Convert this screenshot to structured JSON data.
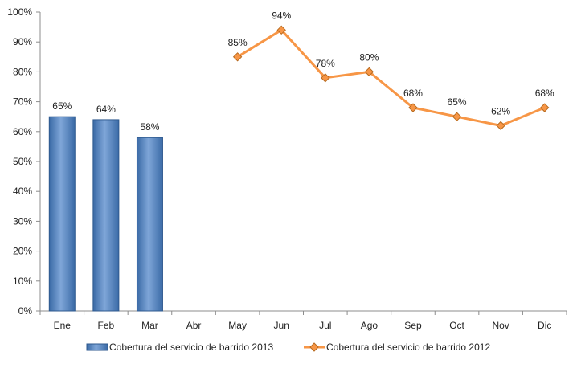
{
  "chart_data": {
    "type": "bar",
    "categories": [
      "Ene",
      "Feb",
      "Mar",
      "Abr",
      "May",
      "Jun",
      "Jul",
      "Ago",
      "Sep",
      "Oct",
      "Nov",
      "Dic"
    ],
    "y_ticks": [
      "0%",
      "10%",
      "20%",
      "30%",
      "40%",
      "50%",
      "60%",
      "70%",
      "80%",
      "90%",
      "100%"
    ],
    "ylim": [
      0,
      100
    ],
    "grid": false,
    "legend_position": "bottom",
    "series": [
      {
        "name": "Cobertura del servicio de barrido 2013",
        "type": "bar",
        "color": "#4F81BD",
        "values": [
          65,
          64,
          58,
          null,
          null,
          null,
          null,
          null,
          null,
          null,
          null,
          null
        ],
        "labels": [
          "65%",
          "64%",
          "58%",
          "",
          "",
          "",
          "",
          "",
          "",
          "",
          "",
          ""
        ]
      },
      {
        "name": "Cobertura del servicio de barrido 2012",
        "type": "line",
        "color": "#F79646",
        "values": [
          null,
          null,
          null,
          null,
          85,
          94,
          78,
          80,
          68,
          65,
          62,
          68
        ],
        "labels": [
          "",
          "",
          "",
          "",
          "85%",
          "94%",
          "78%",
          "80%",
          "68%",
          "65%",
          "62%",
          "68%"
        ]
      }
    ]
  }
}
